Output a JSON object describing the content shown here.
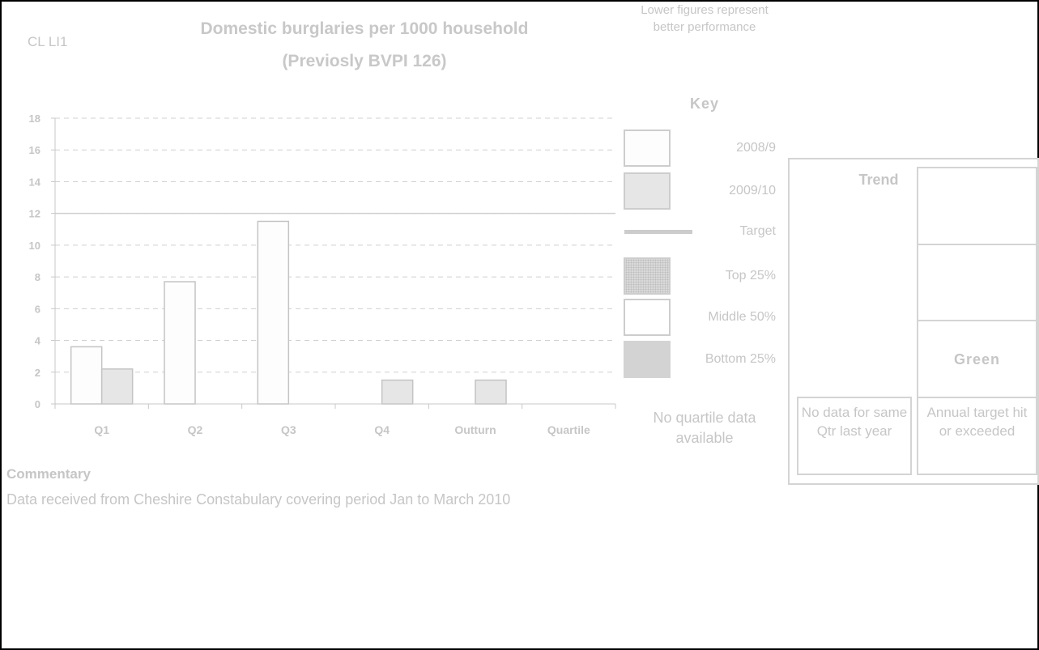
{
  "indicator_code": "CL LI1",
  "chart_data": {
    "type": "bar",
    "title": "Domestic burglaries per 1000 household",
    "subtitle": "(Previosly BVPI 126)",
    "categories": [
      "Q1",
      "Q2",
      "Q3",
      "Q4",
      "Outturn",
      "Quartile"
    ],
    "series": [
      {
        "name": "2008/9",
        "values": [
          3.6,
          7.7,
          11.5,
          null,
          null,
          null
        ],
        "color": "#fdfdfd"
      },
      {
        "name": "2009/10",
        "values": [
          2.2,
          null,
          null,
          1.5,
          1.5,
          null
        ],
        "color": "#e6e6e6"
      }
    ],
    "target": 12,
    "ylim": [
      0,
      18
    ],
    "yticks": [
      0,
      2,
      4,
      6,
      8,
      10,
      12,
      14,
      16,
      18
    ],
    "grid": true,
    "legend_position": "right"
  },
  "note": "Lower figures represent better performance",
  "key": {
    "title": "Key",
    "items": [
      {
        "label": "2008/9",
        "kind": "box",
        "color": "#fdfdfd"
      },
      {
        "label": "2009/10",
        "kind": "box",
        "color": "#e6e6e6"
      },
      {
        "label": "Target",
        "kind": "line",
        "color": "#cccccc"
      },
      {
        "label": "Top 25%",
        "kind": "hatched",
        "color": "#d9d9d9"
      },
      {
        "label": "Middle 50%",
        "kind": "box",
        "color": "#ffffff"
      },
      {
        "label": "Bottom 25%",
        "kind": "solid",
        "color": "#d3d3d3"
      }
    ]
  },
  "no_quartile_text": "No quartile data available",
  "commentary": {
    "heading": "Commentary",
    "text": "Data received from Cheshire Constabulary covering period Jan to March 2010"
  },
  "trend_panel": {
    "trend_label": "Trend",
    "status": "Green",
    "trend_text": "No data for same Qtr last year",
    "status_text": "Annual target hit or exceeded"
  }
}
